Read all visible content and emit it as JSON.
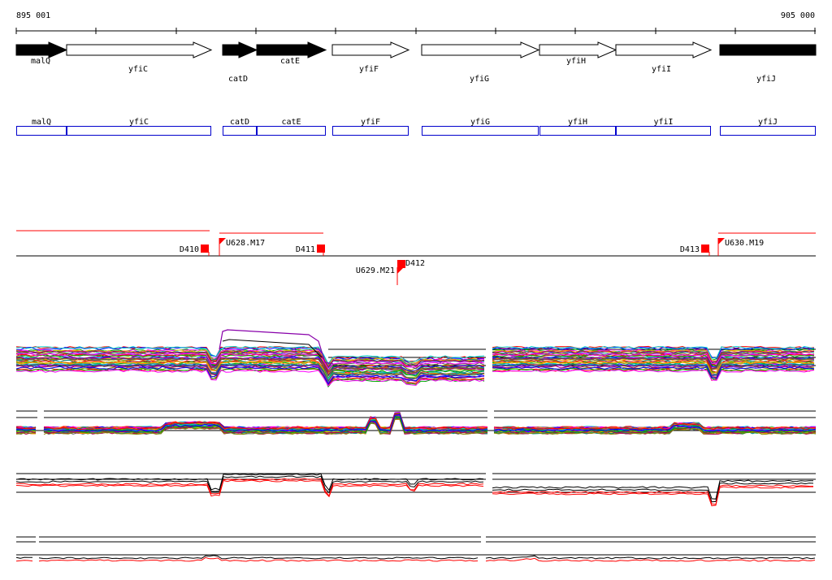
{
  "coord": {
    "start": "895 001",
    "end": "905 000"
  },
  "genes_top": [
    {
      "name": "malQ",
      "dir": "right",
      "fill": "black"
    },
    {
      "name": "yfiC",
      "dir": "right",
      "fill": "white"
    },
    {
      "name": "catD",
      "dir": "right",
      "fill": "black"
    },
    {
      "name": "catE",
      "dir": "right",
      "fill": "black"
    },
    {
      "name": "yfiF",
      "dir": "right",
      "fill": "white"
    },
    {
      "name": "yfiG",
      "dir": "right",
      "fill": "white"
    },
    {
      "name": "yfiH",
      "dir": "right",
      "fill": "white"
    },
    {
      "name": "yfiI",
      "dir": "right",
      "fill": "white"
    },
    {
      "name": "yfiJ",
      "dir": "none",
      "fill": "black"
    }
  ],
  "genes_boxes": [
    "malQ",
    "yfiC",
    "catD",
    "catE",
    "yfiF",
    "yfiG",
    "yfiH",
    "yfiI",
    "yfiJ"
  ],
  "features": [
    {
      "label": "D410",
      "type": "D"
    },
    {
      "label": "U628.M17",
      "type": "U"
    },
    {
      "label": "D411",
      "type": "D"
    },
    {
      "label": "D412",
      "type": "D"
    },
    {
      "label": "U629.M21",
      "type": "U"
    },
    {
      "label": "D413",
      "type": "D"
    },
    {
      "label": "U630.M19",
      "type": "U"
    }
  ],
  "colors": {
    "gene_box": "#0000cc",
    "feature": "#ff0000",
    "line": "#000000",
    "track_palette": [
      "#ff0000",
      "#00aa00",
      "#0000ff",
      "#ff00ff",
      "#00cccc",
      "#cccc00",
      "#ff8800",
      "#8800ff",
      "#008888",
      "#888800",
      "#aa0055",
      "#555555"
    ]
  }
}
